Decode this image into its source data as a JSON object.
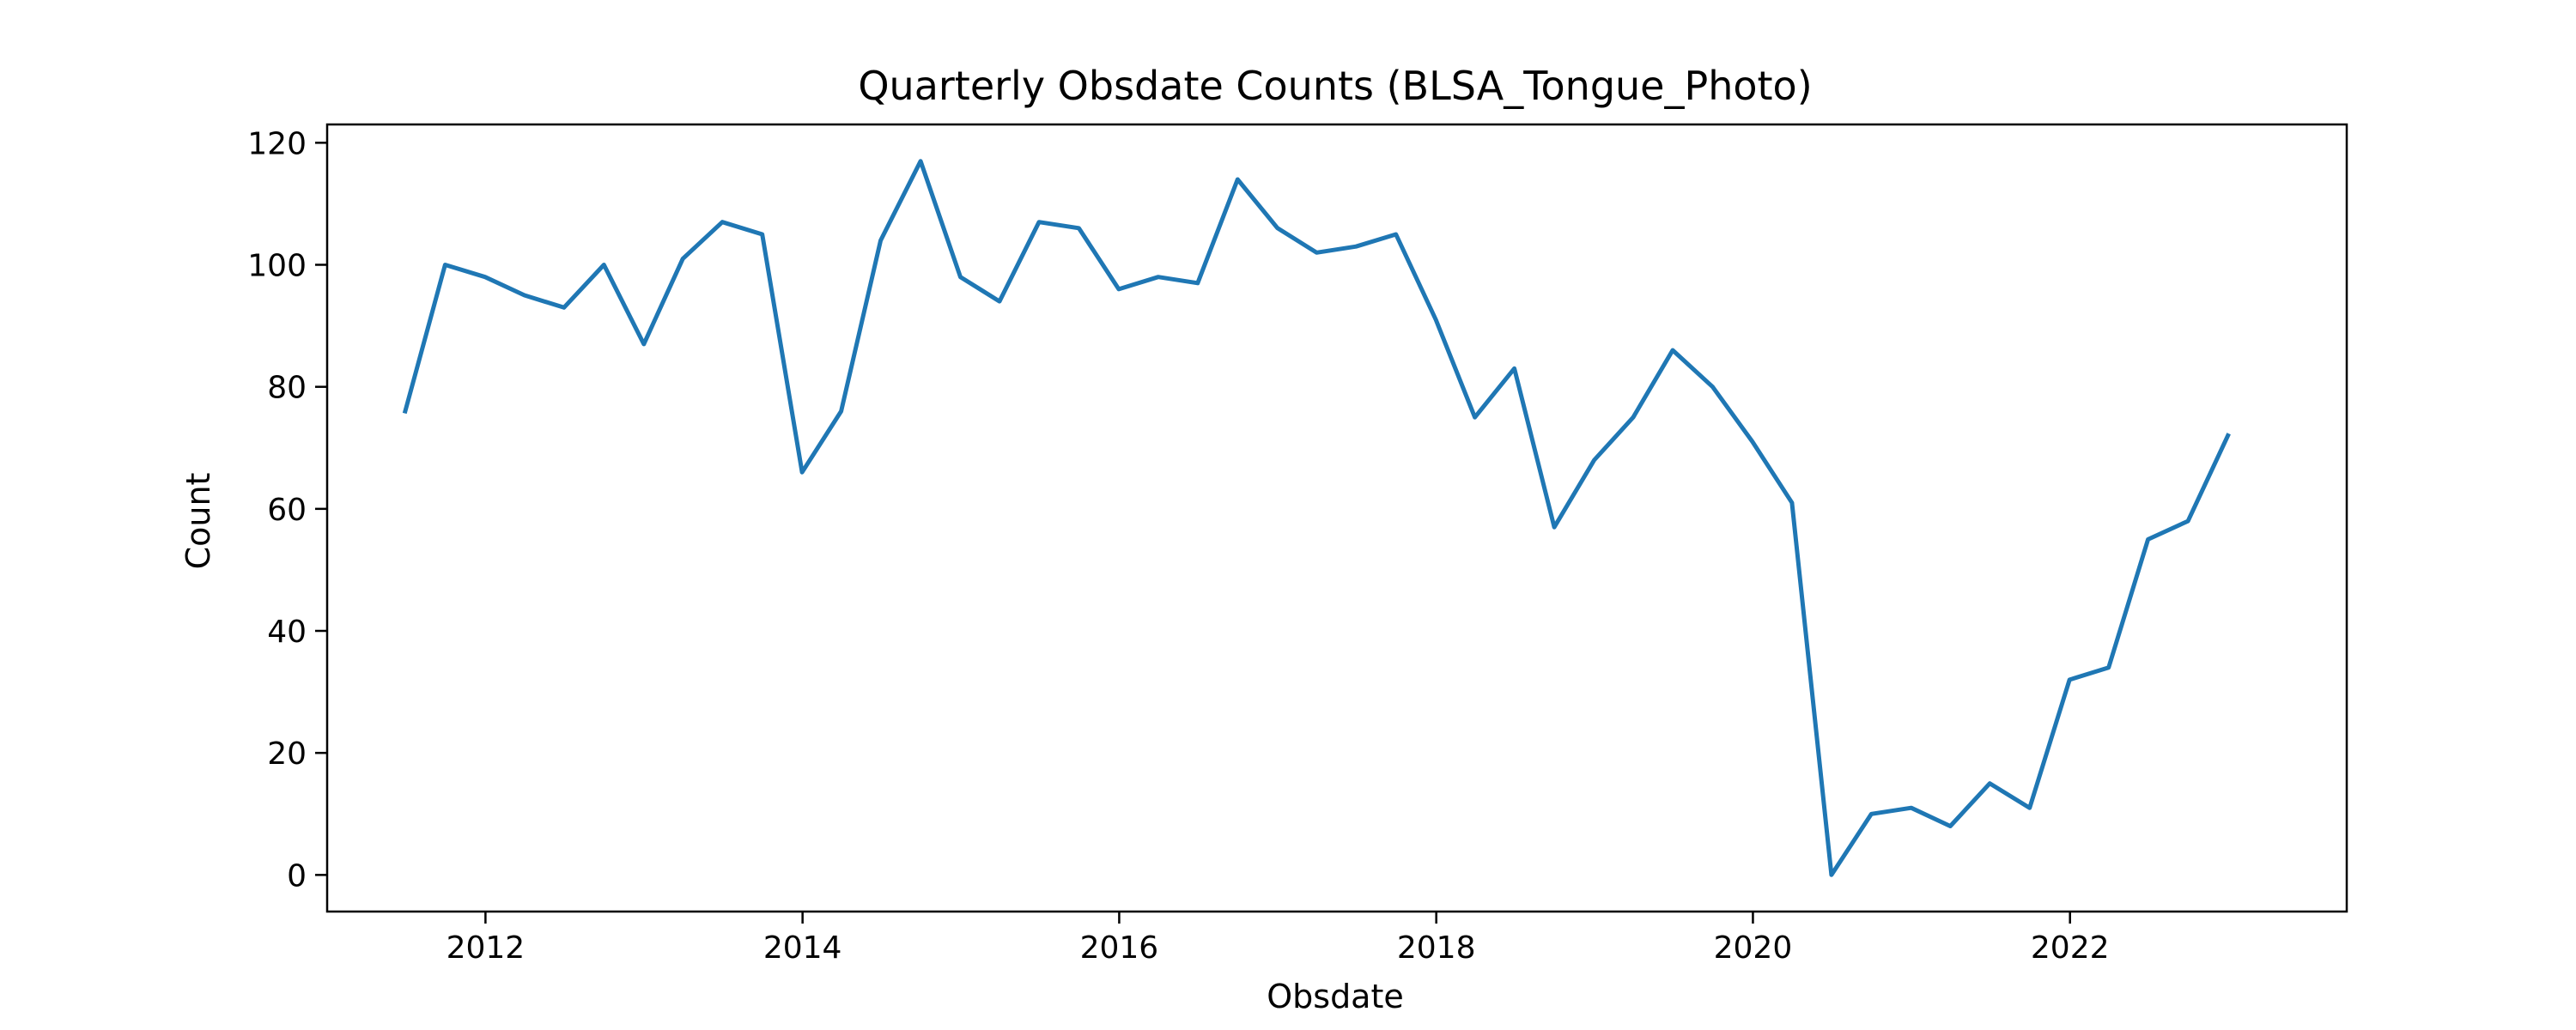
{
  "chart_data": {
    "type": "line",
    "title": "Quarterly Obsdate Counts (BLSA_Tongue_Photo)",
    "xlabel": "Obsdate",
    "ylabel": "Count",
    "xlim": [
      "2011-01-01",
      "2023-10-01"
    ],
    "ylim": [
      -6,
      123
    ],
    "x_ticks": [
      {
        "date": "2012-01-01",
        "label": "2012"
      },
      {
        "date": "2014-01-01",
        "label": "2014"
      },
      {
        "date": "2016-01-01",
        "label": "2016"
      },
      {
        "date": "2018-01-01",
        "label": "2018"
      },
      {
        "date": "2020-01-01",
        "label": "2020"
      },
      {
        "date": "2022-01-01",
        "label": "2022"
      }
    ],
    "y_ticks": [
      0,
      20,
      40,
      60,
      80,
      100,
      120
    ],
    "grid": false,
    "series_color": "#1f77b4",
    "series": [
      {
        "name": "",
        "x": [
          "2011-06-30",
          "2011-09-30",
          "2011-12-31",
          "2012-03-31",
          "2012-06-30",
          "2012-09-30",
          "2012-12-31",
          "2013-03-31",
          "2013-06-30",
          "2013-09-30",
          "2013-12-31",
          "2014-03-31",
          "2014-06-30",
          "2014-09-30",
          "2014-12-31",
          "2015-03-31",
          "2015-06-30",
          "2015-09-30",
          "2015-12-31",
          "2016-03-31",
          "2016-06-30",
          "2016-09-30",
          "2016-12-31",
          "2017-03-31",
          "2017-06-30",
          "2017-09-30",
          "2017-12-31",
          "2018-03-31",
          "2018-06-30",
          "2018-09-30",
          "2018-12-31",
          "2019-03-31",
          "2019-06-30",
          "2019-09-30",
          "2019-12-31",
          "2020-03-31",
          "2020-06-30",
          "2020-09-30",
          "2020-12-31",
          "2021-03-31",
          "2021-06-30",
          "2021-09-30",
          "2021-12-31",
          "2022-03-31",
          "2022-06-30",
          "2022-09-30",
          "2022-12-31"
        ],
        "values": [
          76,
          100,
          98,
          95,
          93,
          100,
          87,
          101,
          107,
          105,
          66,
          76,
          104,
          117,
          98,
          94,
          107,
          106,
          96,
          98,
          97,
          114,
          106,
          102,
          103,
          105,
          91,
          75,
          83,
          57,
          68,
          75,
          86,
          80,
          71,
          61,
          0,
          10,
          11,
          8,
          15,
          11,
          32,
          34,
          55,
          58,
          72
        ]
      }
    ]
  }
}
